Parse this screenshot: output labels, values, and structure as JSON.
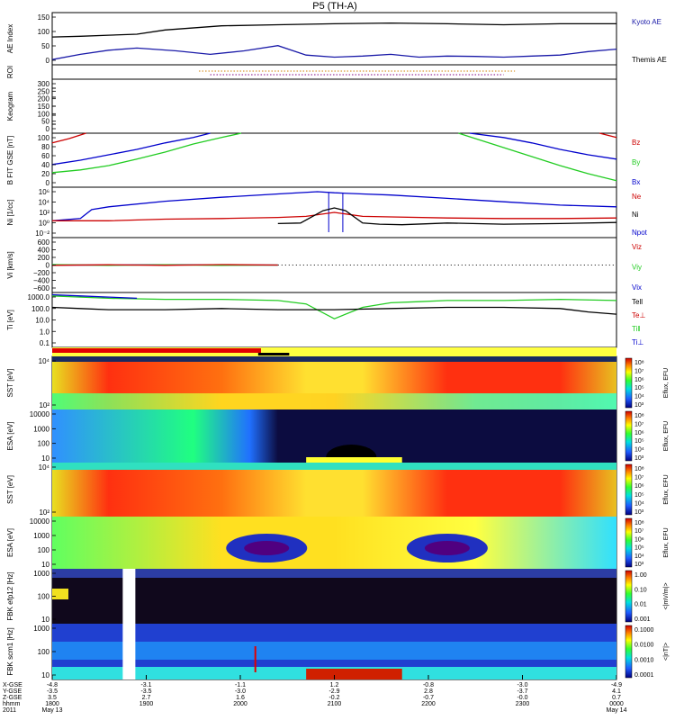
{
  "chart_data": {
    "type": "line",
    "title": "P5 (TH-A)",
    "time_ticks": [
      "1800",
      "1900",
      "2000",
      "2100",
      "2200",
      "2300",
      "0000"
    ],
    "x_gse": [
      "-4.8",
      "-3.1",
      "-1.1",
      "1.2",
      "-0.8",
      "-3.0",
      "-4.9"
    ],
    "y_gse": [
      "-3.5",
      "-3.5",
      "-3.0",
      "-2.9",
      "2.8",
      "-3.7",
      "4.1"
    ],
    "z_gse": [
      "3.5",
      "2.7",
      "1.6",
      "-0.2",
      "-0.7",
      "-0.0",
      "0.7"
    ],
    "row_labels": [
      "X-GSE",
      "Y-GSE",
      "Z-GSE",
      "hhmm",
      "2011"
    ],
    "date_start": "May 13",
    "date_end": "May 14",
    "panels": [
      {
        "id": "ae",
        "ylabel": "AE Index",
        "yticks": [
          "150",
          "100",
          "50",
          "0"
        ],
        "legend": [
          {
            "text": "Kyoto AE",
            "color": "#1a1aa8"
          },
          {
            "text": "Themis AE",
            "color": "#000000"
          }
        ]
      },
      {
        "id": "roi",
        "ylabel": "ROI",
        "yticks": [],
        "legend": []
      },
      {
        "id": "keogram",
        "ylabel": "Keogram",
        "yticks": [
          "300",
          "250",
          "200",
          "150",
          "100",
          "50",
          "0"
        ],
        "legend": []
      },
      {
        "id": "bfit",
        "ylabel": "B FIT GSE [nT]",
        "yticks": [
          "100",
          "80",
          "60",
          "40",
          "20",
          "0"
        ],
        "legend": [
          {
            "text": "Bz",
            "color": "#cc0000"
          },
          {
            "text": "By",
            "color": "#22cc22"
          },
          {
            "text": "Bx",
            "color": "#0000cc"
          }
        ]
      },
      {
        "id": "ni",
        "ylabel": "Ni [1/cc]",
        "yticks": [
          "10⁶",
          "10⁴",
          "10²",
          "10⁰",
          "10⁻²"
        ],
        "legend": [
          {
            "text": "Ne",
            "color": "#cc0000"
          },
          {
            "text": "Ni",
            "color": "#000000"
          },
          {
            "text": "Npot",
            "color": "#0000cc"
          }
        ]
      },
      {
        "id": "vi",
        "ylabel": "Vi [km/s]",
        "yticks": [
          "600",
          "400",
          "200",
          "0",
          "−200",
          "−400",
          "−600"
        ],
        "legend": [
          {
            "text": "Viz",
            "color": "#cc0000"
          },
          {
            "text": "Viy",
            "color": "#22cc22"
          },
          {
            "text": "Vix",
            "color": "#0000cc"
          }
        ]
      },
      {
        "id": "ti",
        "ylabel": "Ti [eV]",
        "yticks": [
          "1000.0",
          "100.0",
          "10.0",
          "1.0",
          "0.1"
        ],
        "legend": [
          {
            "text": "Tell",
            "color": "#000000"
          },
          {
            "text": "Te⊥",
            "color": "#cc0000"
          },
          {
            "text": "Ti‖",
            "color": "#22cc22"
          },
          {
            "text": "Ti⊥",
            "color": "#0000cc"
          }
        ]
      },
      {
        "id": "sst1",
        "ylabel": "SST [eV]",
        "yticks": [
          "10⁴",
          "10²"
        ],
        "cbar": "Eflux, EFU"
      },
      {
        "id": "esa1",
        "ylabel": "ESA [eV]",
        "yticks": [
          "10000",
          "1000",
          "100",
          "10"
        ],
        "cbar": "Eflux, EFU"
      },
      {
        "id": "sst2",
        "ylabel": "SST [eV]",
        "yticks": [
          "10⁴",
          "10²"
        ],
        "cbar": "Eflux, EFU"
      },
      {
        "id": "esa2",
        "ylabel": "ESA [eV]",
        "yticks": [
          "10000",
          "1000",
          "100",
          "10"
        ],
        "cbar": "Eflux, EFU"
      },
      {
        "id": "fbk1",
        "ylabel": "FBK efp12 [Hz]",
        "yticks": [
          "1000",
          "100",
          "10"
        ],
        "cbar": "<|mV/m|>"
      },
      {
        "id": "fbk2",
        "ylabel": "FBK scm1 [Hz]",
        "yticks": [
          "1000",
          "100",
          "10"
        ],
        "cbar": "<|nT|>"
      }
    ],
    "cbar_ticks": {
      "sst1": [
        "10⁸",
        "10⁷",
        "10⁶",
        "10⁵",
        "10⁴",
        "10³"
      ],
      "esa1": [
        "10⁸",
        "10⁷",
        "10⁶",
        "10⁵",
        "10⁴",
        "10³"
      ],
      "sst2": [
        "10⁸",
        "10⁷",
        "10⁶",
        "10⁵",
        "10⁴",
        "10³"
      ],
      "esa2": [
        "10⁸",
        "10⁷",
        "10⁶",
        "10⁵",
        "10⁴",
        "10³"
      ],
      "fbk1": [
        "1.00",
        "0.10",
        "0.01",
        "0.001"
      ],
      "fbk2": [
        "0.1000",
        "0.0100",
        "0.0010",
        "0.0001"
      ]
    },
    "series": [
      {
        "name": "Themis AE",
        "panel": "ae",
        "color": "#000000",
        "x": [
          0,
          5,
          10,
          15,
          20,
          30,
          40,
          50,
          60,
          70,
          80,
          90,
          100
        ],
        "values": [
          80,
          82,
          85,
          88,
          100,
          112,
          115,
          118,
          120,
          118,
          115,
          118,
          118
        ]
      },
      {
        "name": "Kyoto AE",
        "panel": "ae",
        "color": "#1a1aa8",
        "x": [
          0,
          5,
          10,
          15,
          22,
          28,
          34,
          40,
          45,
          50,
          55,
          60,
          65,
          70,
          75,
          80,
          85,
          90,
          95,
          100
        ],
        "values": [
          15,
          30,
          42,
          48,
          40,
          30,
          40,
          55,
          28,
          22,
          25,
          30,
          22,
          25,
          24,
          22,
          25,
          28,
          38,
          45
        ]
      },
      {
        "name": "Bx",
        "panel": "bfit",
        "color": "#0000cc",
        "x": [
          0,
          5,
          10,
          15,
          20,
          25,
          28
        ],
        "values": [
          42,
          50,
          60,
          70,
          82,
          92,
          100
        ]
      },
      {
        "name": "Bz",
        "panel": "bfit",
        "color": "#cc0000",
        "x": [
          0,
          3,
          6
        ],
        "values": [
          82,
          90,
          100
        ]
      },
      {
        "name": "By",
        "panel": "bfit",
        "color": "#22cc22",
        "x": [
          0,
          5,
          10,
          15,
          20,
          25,
          30,
          33.5
        ],
        "values": [
          27,
          32,
          40,
          52,
          65,
          80,
          92,
          100
        ]
      },
      {
        "name": "Bx end",
        "panel": "bfit",
        "color": "#0000cc",
        "x": [
          74,
          80,
          85,
          90,
          95,
          100
        ],
        "values": [
          100,
          92,
          82,
          70,
          60,
          52
        ]
      },
      {
        "name": "By end",
        "panel": "bfit",
        "color": "#22cc22",
        "x": [
          72,
          78,
          84,
          90,
          95,
          100
        ],
        "values": [
          100,
          80,
          60,
          40,
          25,
          12
        ]
      },
      {
        "name": "Bz end",
        "panel": "bfit",
        "color": "#cc0000",
        "x": [
          97,
          100
        ],
        "values": [
          100,
          92
        ]
      },
      {
        "name": "Npot",
        "panel": "ni",
        "color": "#0000cc",
        "x": [
          0,
          5,
          7,
          10,
          20,
          30,
          40,
          47,
          50,
          55,
          60,
          70,
          80,
          90,
          100
        ],
        "values": [
          0,
          0.4,
          2,
          2.5,
          3.5,
          4.2,
          4.8,
          5.2,
          5,
          4.8,
          4.6,
          4.0,
          3.4,
          2.8,
          2.5
        ]
      },
      {
        "name": "Ne",
        "panel": "ni",
        "color": "#cc0000",
        "x": [
          0,
          10,
          20,
          30,
          40,
          45,
          50,
          55,
          60,
          70,
          80,
          90,
          100
        ],
        "values": [
          0,
          0,
          0.3,
          0.4,
          0.6,
          0.8,
          1.5,
          0.8,
          0.7,
          0.5,
          0.4,
          0.4,
          0.5
        ]
      },
      {
        "name": "Ni",
        "panel": "ni",
        "color": "#000000",
        "x": [
          40,
          44,
          48,
          50,
          52,
          55,
          58,
          62,
          70,
          80,
          90,
          100
        ],
        "values": [
          -0.5,
          -0.4,
          1.8,
          2.3,
          1.8,
          -0.4,
          -0.6,
          -0.7,
          -0.4,
          -0.6,
          -0.5,
          -0.3
        ]
      },
      {
        "name": "Vix",
        "panel": "vi",
        "color": "#0000cc",
        "x": [
          0,
          10,
          20,
          30,
          40
        ],
        "values": [
          0,
          0,
          5,
          0,
          0
        ]
      },
      {
        "name": "Viy",
        "panel": "vi",
        "color": "#22cc22",
        "x": [
          0,
          10,
          20,
          30,
          40
        ],
        "values": [
          10,
          -5,
          5,
          -5,
          0
        ]
      },
      {
        "name": "Viz",
        "panel": "vi",
        "color": "#cc0000",
        "x": [
          0,
          10,
          20,
          30,
          40
        ],
        "values": [
          -5,
          5,
          -5,
          10,
          0
        ]
      },
      {
        "name": "Ti‖",
        "panel": "ti",
        "color": "#22cc22",
        "x": [
          0,
          5,
          10,
          20,
          30,
          40,
          45,
          50,
          55,
          60,
          65,
          70,
          80,
          90,
          100
        ],
        "values": [
          3.2,
          3.1,
          3.0,
          2.9,
          2.9,
          2.8,
          2.5,
          1.2,
          2.2,
          2.6,
          2.7,
          2.8,
          2.8,
          2.9,
          2.8
        ]
      },
      {
        "name": "Tell",
        "panel": "ti",
        "color": "#000000",
        "x": [
          0,
          5,
          10,
          20,
          30,
          40,
          50,
          60,
          70,
          80,
          90,
          95,
          100
        ],
        "values": [
          2.2,
          2.1,
          2.0,
          2.0,
          2.1,
          2.0,
          2.0,
          2.1,
          2.2,
          2.2,
          2.1,
          1.8,
          1.6
        ]
      },
      {
        "name": "Ti⊥",
        "panel": "ti",
        "color": "#0000cc",
        "x": [
          0,
          5,
          10,
          15
        ],
        "values": [
          3.3,
          3.2,
          3.1,
          3.0
        ]
      }
    ]
  }
}
